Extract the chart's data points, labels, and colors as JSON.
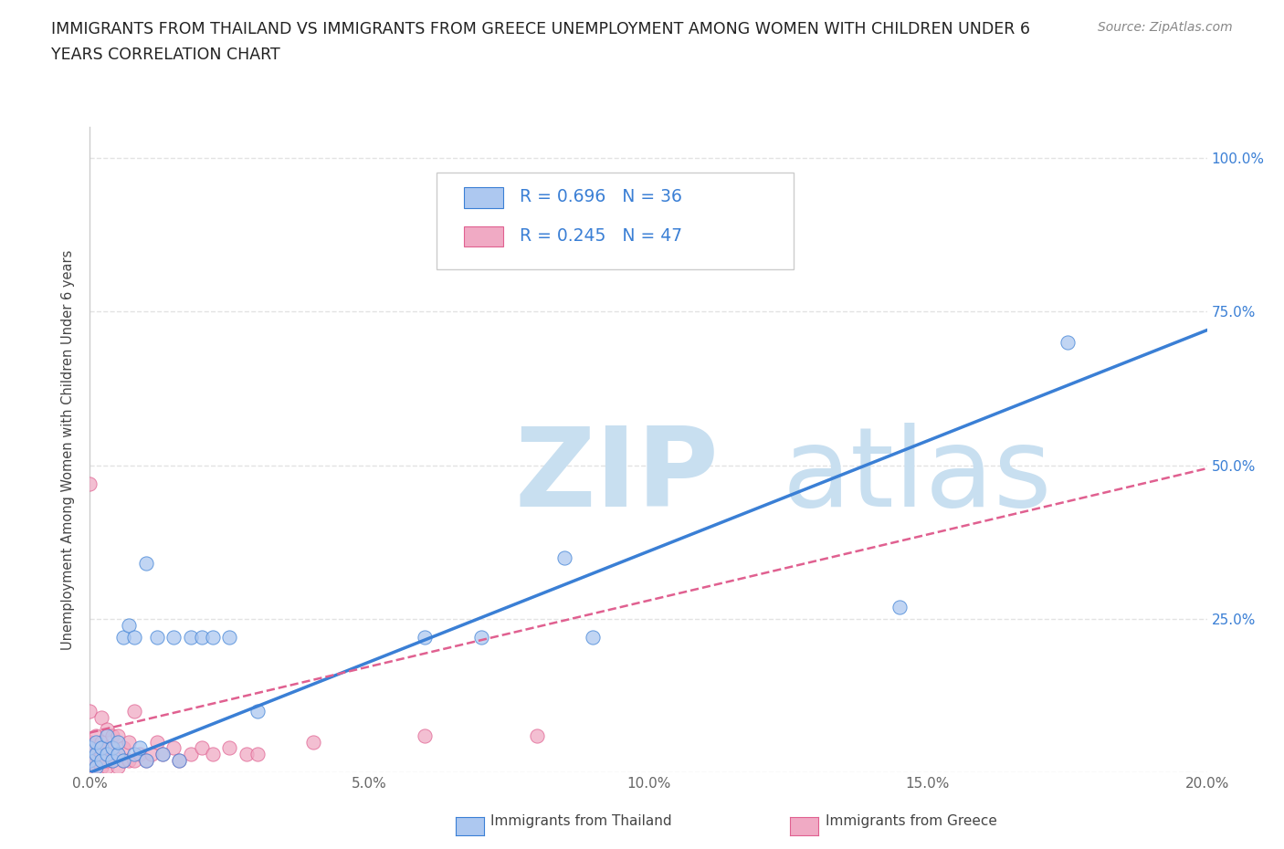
{
  "title_line1": "IMMIGRANTS FROM THAILAND VS IMMIGRANTS FROM GREECE UNEMPLOYMENT AMONG WOMEN WITH CHILDREN UNDER 6",
  "title_line2": "YEARS CORRELATION CHART",
  "source": "Source: ZipAtlas.com",
  "ylabel": "Unemployment Among Women with Children Under 6 years",
  "xlim": [
    0.0,
    0.2
  ],
  "ylim": [
    0.0,
    1.05
  ],
  "xticks": [
    0.0,
    0.05,
    0.1,
    0.15,
    0.2
  ],
  "yticks": [
    0.0,
    0.25,
    0.5,
    0.75,
    1.0
  ],
  "xticklabels": [
    "0.0%",
    "5.0%",
    "10.0%",
    "15.0%",
    "20.0%"
  ],
  "right_yticklabels": [
    "",
    "25.0%",
    "50.0%",
    "75.0%",
    "100.0%"
  ],
  "thailand_color": "#adc8f0",
  "greece_color": "#f0aac4",
  "thailand_R": 0.696,
  "thailand_N": 36,
  "greece_R": 0.245,
  "greece_N": 47,
  "trend_thailand_color": "#3a7fd5",
  "trend_greece_color": "#e06090",
  "background_color": "#ffffff",
  "grid_color": "#dddddd",
  "watermark_zip_color": "#c8dff0",
  "watermark_atlas_color": "#c8dff0",
  "legend_label_thailand": "Immigrants from Thailand",
  "legend_label_greece": "Immigrants from Greece",
  "thailand_x": [
    0.0,
    0.0,
    0.001,
    0.001,
    0.001,
    0.002,
    0.002,
    0.003,
    0.003,
    0.004,
    0.004,
    0.005,
    0.005,
    0.006,
    0.006,
    0.007,
    0.008,
    0.008,
    0.009,
    0.01,
    0.01,
    0.012,
    0.013,
    0.015,
    0.016,
    0.018,
    0.02,
    0.022,
    0.025,
    0.03,
    0.06,
    0.07,
    0.085,
    0.09,
    0.145,
    0.175
  ],
  "thailand_y": [
    0.02,
    0.04,
    0.01,
    0.03,
    0.05,
    0.02,
    0.04,
    0.03,
    0.06,
    0.02,
    0.04,
    0.03,
    0.05,
    0.02,
    0.22,
    0.24,
    0.03,
    0.22,
    0.04,
    0.02,
    0.34,
    0.22,
    0.03,
    0.22,
    0.02,
    0.22,
    0.22,
    0.22,
    0.22,
    0.1,
    0.22,
    0.22,
    0.35,
    0.22,
    0.27,
    0.7
  ],
  "greece_x": [
    0.0,
    0.0,
    0.0,
    0.0,
    0.0,
    0.0,
    0.0,
    0.001,
    0.001,
    0.001,
    0.001,
    0.002,
    0.002,
    0.002,
    0.002,
    0.003,
    0.003,
    0.003,
    0.003,
    0.004,
    0.004,
    0.004,
    0.005,
    0.005,
    0.005,
    0.006,
    0.006,
    0.007,
    0.007,
    0.008,
    0.008,
    0.009,
    0.01,
    0.011,
    0.012,
    0.013,
    0.015,
    0.016,
    0.018,
    0.02,
    0.022,
    0.025,
    0.028,
    0.03,
    0.04,
    0.06,
    0.08
  ],
  "greece_y": [
    0.01,
    0.02,
    0.03,
    0.04,
    0.05,
    0.47,
    0.1,
    0.01,
    0.02,
    0.03,
    0.06,
    0.01,
    0.03,
    0.05,
    0.09,
    0.01,
    0.02,
    0.04,
    0.07,
    0.02,
    0.04,
    0.06,
    0.01,
    0.03,
    0.06,
    0.02,
    0.04,
    0.02,
    0.05,
    0.02,
    0.1,
    0.03,
    0.02,
    0.03,
    0.05,
    0.03,
    0.04,
    0.02,
    0.03,
    0.04,
    0.03,
    0.04,
    0.03,
    0.03,
    0.05,
    0.06,
    0.06
  ],
  "trend_th_x0": 0.0,
  "trend_th_y0": 0.0,
  "trend_th_x1": 0.2,
  "trend_th_y1": 0.72,
  "trend_gr_x0": 0.0,
  "trend_gr_y0": 0.065,
  "trend_gr_x1": 0.2,
  "trend_gr_y1": 0.495
}
